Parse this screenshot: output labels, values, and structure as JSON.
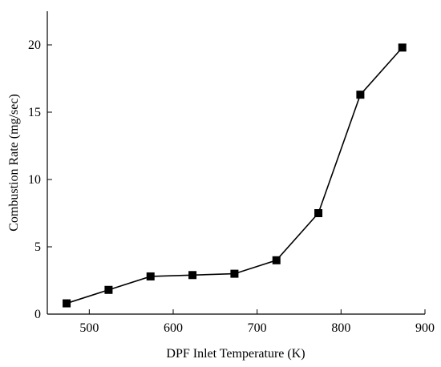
{
  "chart_data": {
    "type": "line",
    "title": "",
    "xlabel": "DPF Inlet Temperature (K)",
    "ylabel": "Combustion Rate (mg/sec)",
    "xlim": [
      450,
      900
    ],
    "ylim": [
      0,
      22.5
    ],
    "xticks": [
      500,
      600,
      700,
      800,
      900
    ],
    "yticks": [
      0,
      5,
      10,
      15,
      20
    ],
    "xtick_labels": [
      "500",
      "600",
      "700",
      "800",
      "900"
    ],
    "ytick_labels": [
      "0",
      "5",
      "10",
      "15",
      "20"
    ],
    "grid": false,
    "marker": "square",
    "series": [
      {
        "x": [
          473,
          523,
          573,
          623,
          673,
          723,
          773,
          823,
          873
        ],
        "y": [
          0.8,
          1.8,
          2.8,
          2.9,
          3.0,
          4.0,
          7.5,
          16.3,
          19.8
        ]
      }
    ],
    "colors": {
      "line": "#000000",
      "marker": "#000000"
    }
  }
}
